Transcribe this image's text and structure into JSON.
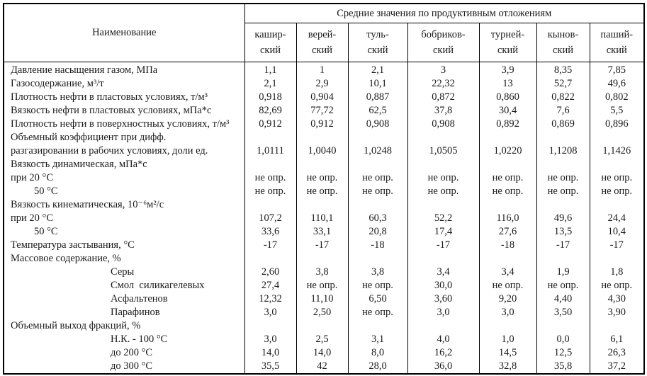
{
  "table": {
    "name_header": "Наименование",
    "group_header": "Средние значения по продуктивным отложениям",
    "columns": [
      "кашир-\nский",
      "верей-\nский",
      "туль-\nский",
      "бобриков-\nский",
      "турней-\nский",
      "кынов-\nский",
      "паший-\nский"
    ],
    "not_determined_label": "не опр.",
    "rows": [
      {
        "label": "Давление насыщения газом, МПа",
        "indent": 0,
        "values": [
          "1,1",
          "1",
          "2,1",
          "3",
          "3,9",
          "8,35",
          "7,85"
        ]
      },
      {
        "label": "Газосодержание, м³/т",
        "indent": 0,
        "values": [
          "2,1",
          "2,9",
          "10,1",
          "22,32",
          "13",
          "52,7",
          "49,6"
        ]
      },
      {
        "label": "Плотность нефти в пластовых условиях, т/м³",
        "indent": 0,
        "values": [
          "0,918",
          "0,904",
          "0,887",
          "0,872",
          "0,860",
          "0,822",
          "0,802"
        ]
      },
      {
        "label": "Вязкость нефти в пластовых условиях, мПа*с",
        "indent": 0,
        "values": [
          "82,69",
          "77,72",
          "62,5",
          "37,8",
          "30,4",
          "7,6",
          "5,5"
        ]
      },
      {
        "label": "Плотность нефти в поверхностных условиях, т/м³",
        "indent": 0,
        "values": [
          "0,912",
          "0,912",
          "0,908",
          "0,908",
          "0,892",
          "0,869",
          "0,896"
        ]
      },
      {
        "label": "Объемный коэффициент при дифф.",
        "indent": 0,
        "values": [
          "",
          "",
          "",
          "",
          "",
          "",
          ""
        ]
      },
      {
        "label": "разгазировании в рабочих условиях, доли ед.",
        "indent": 0,
        "values": [
          "1,0111",
          "1,0040",
          "1,0248",
          "1,0505",
          "1,0220",
          "1,1208",
          "1,1426"
        ]
      },
      {
        "label": "Вязкость динамическая, мПа*с",
        "indent": 0,
        "values": [
          "",
          "",
          "",
          "",
          "",
          "",
          ""
        ]
      },
      {
        "label": "при 20 °С",
        "indent": 0,
        "values": [
          "не опр.",
          "не опр.",
          "не опр.",
          "не опр.",
          "не опр.",
          "не опр.",
          "не опр."
        ]
      },
      {
        "label": "50 °С",
        "indent": 1,
        "values": [
          "не опр.",
          "не опр.",
          "не опр.",
          "не опр.",
          "не опр.",
          "не опр.",
          "не опр."
        ]
      },
      {
        "label": "Вязкость кинематическая, 10⁻⁶м²/с",
        "indent": 0,
        "values": [
          "",
          "",
          "",
          "",
          "",
          "",
          ""
        ]
      },
      {
        "label": "при 20 °С",
        "indent": 0,
        "values": [
          "107,2",
          "110,1",
          "60,3",
          "52,2",
          "116,0",
          "49,6",
          "24,4"
        ]
      },
      {
        "label": "50 °С",
        "indent": 1,
        "values": [
          "33,6",
          "33,1",
          "20,8",
          "17,4",
          "27,6",
          "13,5",
          "10,4"
        ]
      },
      {
        "label": "Температура застывания, °С",
        "indent": 0,
        "values": [
          "-17",
          "-17",
          "-18",
          "-17",
          "-18",
          "-17",
          "-17"
        ]
      },
      {
        "label": "Массовое содержание, %",
        "indent": 0,
        "values": [
          "",
          "",
          "",
          "",
          "",
          "",
          ""
        ]
      },
      {
        "label": "Серы",
        "indent": 2,
        "values": [
          "2,60",
          "3,8",
          "3,8",
          "3,4",
          "3,4",
          "1,9",
          "1,8"
        ]
      },
      {
        "label": "Смол  силикагелевых",
        "indent": 2,
        "values": [
          "27,4",
          "не опр.",
          "не опр.",
          "30,0",
          "не опр.",
          "не опр.",
          "не опр."
        ]
      },
      {
        "label": "Асфальтенов",
        "indent": 2,
        "values": [
          "12,32",
          "11,10",
          "6,50",
          "3,60",
          "9,20",
          "4,40",
          "4,30"
        ]
      },
      {
        "label": "Парафинов",
        "indent": 2,
        "values": [
          "3,0",
          "2,50",
          "не опр.",
          "3,0",
          "3,0",
          "3,50",
          "3,90"
        ]
      },
      {
        "label": "Объемный выход фракций, %",
        "indent": 0,
        "values": [
          "",
          "",
          "",
          "",
          "",
          "",
          ""
        ]
      },
      {
        "label": "Н.К. - 100 °С",
        "indent": 2,
        "values": [
          "3,0",
          "2,5",
          "3,1",
          "4,0",
          "1,0",
          "0,0",
          "6,1"
        ]
      },
      {
        "label": "до 200 °С",
        "indent": 2,
        "values": [
          "14,0",
          "14,0",
          "8,0",
          "16,2",
          "14,5",
          "12,5",
          "26,3"
        ]
      },
      {
        "label": "до 300 °С",
        "indent": 2,
        "values": [
          "35,5",
          "42",
          "28,0",
          "36,0",
          "32,8",
          "35,8",
          "37,2"
        ]
      }
    ]
  }
}
